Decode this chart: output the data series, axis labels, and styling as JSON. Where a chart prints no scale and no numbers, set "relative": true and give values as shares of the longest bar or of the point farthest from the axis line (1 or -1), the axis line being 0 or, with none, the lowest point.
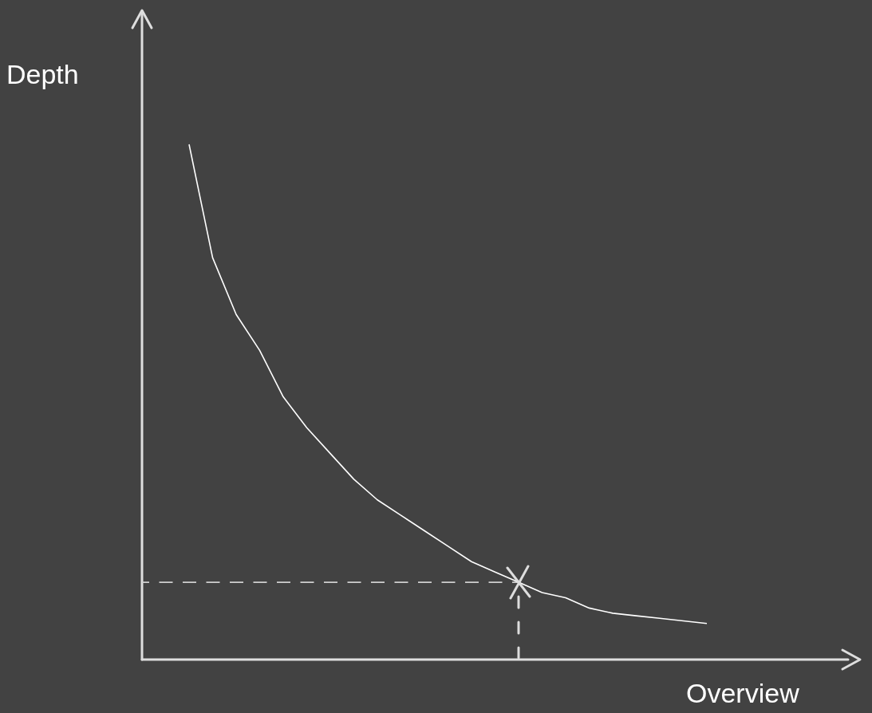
{
  "chart_data": {
    "type": "line",
    "relative": true,
    "xlabel": "Overview",
    "ylabel": "Depth",
    "tick_labels": false,
    "categories": [
      null,
      null,
      null,
      null,
      null,
      null,
      null,
      null,
      null,
      null,
      null,
      null,
      null,
      null,
      null,
      null,
      null,
      null,
      null,
      null,
      null,
      null,
      null,
      null,
      null,
      null,
      null,
      null,
      null,
      null,
      null
    ],
    "series": [
      {
        "color": "#ffffff",
        "values": [
          null,
          null,
          1,
          0.78,
          0.67,
          0.6,
          0.51,
          0.45,
          0.4,
          0.35,
          0.31,
          0.28,
          0.25,
          0.22,
          0.19,
          0.17,
          0.15,
          0.13,
          0.12,
          0.1,
          0.09,
          0.085,
          0.08,
          0.075,
          0.07,
          null,
          null,
          null,
          null,
          null,
          null
        ]
      },
      {
        "color": "#cfcfcf",
        "line_style": "dashed",
        "values": [
          0.15,
          0.15,
          0.15,
          0.15,
          0.15,
          0.15,
          0.15,
          0.15,
          0.15,
          0.15,
          0.15,
          0.15,
          0.15,
          0.15,
          0.15,
          0.15,
          0.15,
          null,
          null,
          null,
          null,
          null,
          null,
          null,
          null,
          null,
          null,
          null,
          null,
          null,
          null
        ]
      }
    ]
  }
}
